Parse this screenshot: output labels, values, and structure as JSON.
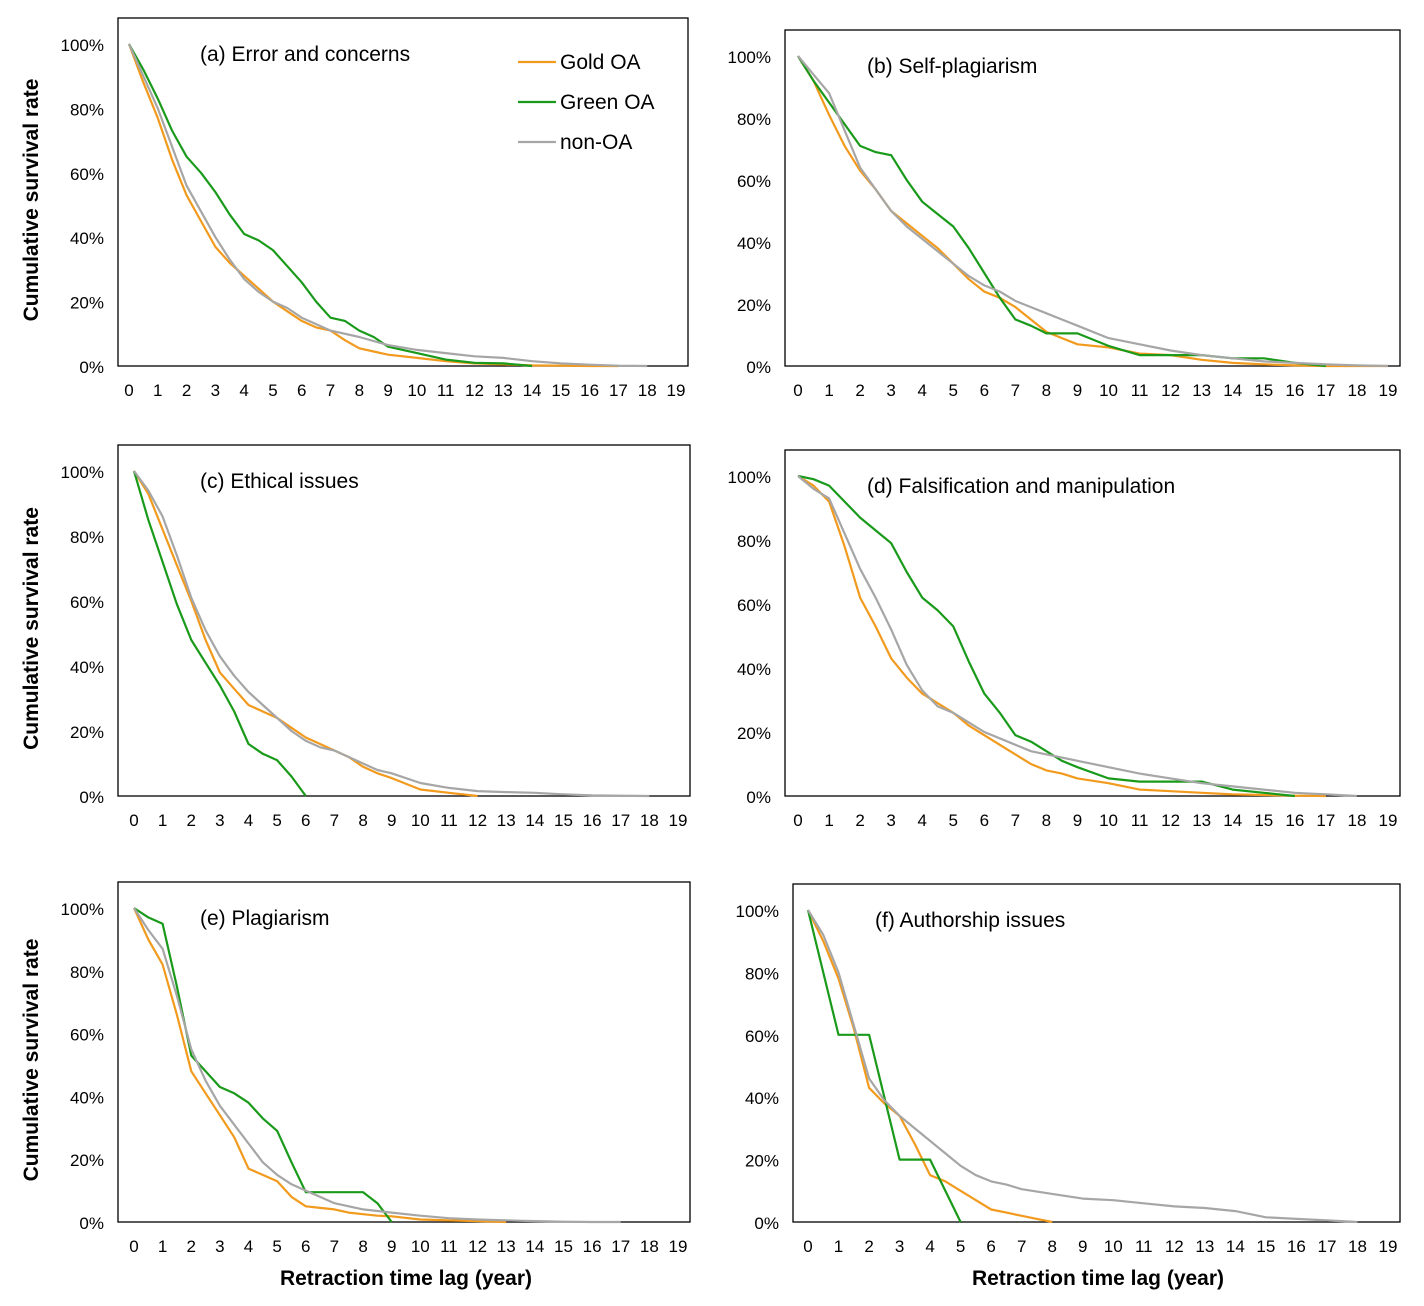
{
  "colors": {
    "gold": "#F29A1D",
    "green": "#1A9A1A",
    "nonoa": "#A6A6A6",
    "axis": "#000000"
  },
  "shared": {
    "ylabel": "Cumulative survival rate",
    "xlabel": "Retraction time lag (year)",
    "xticks": [
      "0",
      "1",
      "2",
      "3",
      "4",
      "5",
      "6",
      "7",
      "8",
      "9",
      "10",
      "11",
      "12",
      "13",
      "14",
      "15",
      "16",
      "17",
      "18",
      "19"
    ],
    "yticks": [
      "0%",
      "20%",
      "40%",
      "60%",
      "80%",
      "100%"
    ],
    "legend": [
      "Gold OA",
      "Green OA",
      "non-OA"
    ]
  },
  "chart_data": [
    {
      "type": "line",
      "title": "(a) Error and concerns",
      "xlim": [
        0,
        19
      ],
      "ylim": [
        0,
        100
      ],
      "series": [
        {
          "name": "Gold OA",
          "x": [
            0,
            0.5,
            1,
            1.5,
            2,
            2.5,
            3,
            3.5,
            4,
            4.5,
            5,
            5.5,
            6,
            6.5,
            7,
            7.5,
            8,
            8.5,
            9,
            10,
            11,
            12,
            13,
            14,
            15,
            16,
            17
          ],
          "values": [
            100,
            88,
            77,
            64,
            53,
            45,
            37,
            32,
            28,
            24,
            20,
            17,
            14,
            12,
            11,
            8,
            5.5,
            4.5,
            3.5,
            2.5,
            1.5,
            0.8,
            0.5,
            0.2,
            0.1,
            0,
            0
          ]
        },
        {
          "name": "Green OA",
          "x": [
            0,
            0.5,
            1,
            1.5,
            2,
            2.5,
            3,
            3.5,
            4,
            4.5,
            5,
            5.5,
            6,
            6.5,
            7,
            7.5,
            8,
            8.5,
            9,
            10,
            11,
            12,
            13,
            14
          ],
          "values": [
            100,
            92,
            83,
            73,
            65,
            60,
            54,
            47,
            41,
            39,
            36,
            31,
            26,
            20,
            15,
            14,
            11,
            9,
            6,
            4,
            2,
            1,
            0.8,
            0
          ]
        },
        {
          "name": "non-OA",
          "x": [
            0,
            0.5,
            1,
            1.5,
            2,
            2.5,
            3,
            3.5,
            4,
            4.5,
            5,
            5.5,
            6,
            6.5,
            7,
            8,
            9,
            10,
            11,
            12,
            13,
            14,
            15,
            16,
            17,
            18
          ],
          "values": [
            100,
            90,
            80,
            68,
            56,
            48,
            40,
            33,
            27,
            23,
            20,
            18,
            15,
            13,
            11,
            9,
            6.5,
            5,
            4,
            3,
            2.5,
            1.5,
            0.8,
            0.4,
            0.1,
            0
          ]
        }
      ]
    },
    {
      "type": "line",
      "title": "(b) Self-plagiarism",
      "xlim": [
        0,
        19
      ],
      "ylim": [
        0,
        100
      ],
      "series": [
        {
          "name": "Gold OA",
          "x": [
            0,
            0.5,
            1,
            1.5,
            2,
            2.5,
            3,
            3.5,
            4,
            4.5,
            5,
            5.5,
            6,
            6.5,
            7,
            7.5,
            8,
            8.5,
            9,
            10,
            11,
            12,
            13,
            14,
            15,
            16,
            17,
            18,
            19
          ],
          "values": [
            100,
            92,
            81,
            71,
            63,
            57,
            50,
            46,
            42,
            38,
            33,
            28,
            24,
            22,
            19,
            15,
            11,
            9,
            7,
            6,
            4,
            3.5,
            2,
            1,
            0.5,
            0.2,
            0,
            0,
            0
          ]
        },
        {
          "name": "Green OA",
          "x": [
            0,
            0.5,
            1,
            1.5,
            2,
            2.5,
            3,
            3.5,
            4,
            4.5,
            5,
            5.5,
            6,
            6.5,
            7,
            7.5,
            8,
            8.5,
            9,
            10,
            11,
            12,
            13,
            14,
            15,
            16,
            17
          ],
          "values": [
            100,
            92,
            85,
            78,
            71,
            69,
            68,
            60,
            53,
            49,
            45,
            38,
            30,
            22,
            15,
            13,
            10.5,
            10.5,
            10.5,
            6.5,
            3.5,
            3.5,
            3.5,
            2.5,
            2.5,
            1,
            0
          ]
        },
        {
          "name": "non-OA",
          "x": [
            0,
            0.5,
            1,
            1.5,
            2,
            2.5,
            3,
            3.5,
            4,
            4.5,
            5,
            5.5,
            6,
            6.5,
            7,
            7.5,
            8,
            8.5,
            9,
            10,
            11,
            12,
            13,
            14,
            15,
            16,
            17,
            18,
            19
          ],
          "values": [
            100,
            94,
            88,
            76,
            64,
            57,
            50,
            45,
            41,
            37,
            33,
            29,
            26,
            24,
            21,
            19,
            17,
            15,
            13,
            9,
            7,
            5,
            3.5,
            2.5,
            1.5,
            1,
            0.5,
            0.2,
            0
          ]
        }
      ]
    },
    {
      "type": "line",
      "title": "(c) Ethical issues",
      "xlim": [
        0,
        19
      ],
      "ylim": [
        0,
        100
      ],
      "series": [
        {
          "name": "Gold OA",
          "x": [
            0,
            0.5,
            1,
            1.5,
            2,
            2.5,
            3,
            3.5,
            4,
            4.5,
            5,
            5.5,
            6,
            6.5,
            7,
            7.5,
            8,
            8.5,
            9,
            10,
            11,
            12
          ],
          "values": [
            100,
            93,
            82,
            71,
            60,
            48,
            38,
            33,
            28,
            26,
            24,
            21,
            18,
            16,
            14,
            12,
            9,
            7,
            5.5,
            2,
            1,
            0
          ]
        },
        {
          "name": "Green OA",
          "x": [
            0,
            0.5,
            1,
            1.5,
            2,
            2.5,
            3,
            3.5,
            4,
            4.5,
            5,
            5.5,
            6
          ],
          "values": [
            100,
            85,
            72,
            59,
            48,
            41,
            34,
            26,
            16,
            13,
            11,
            6,
            0
          ]
        },
        {
          "name": "non-OA",
          "x": [
            0,
            0.5,
            1,
            1.5,
            2,
            2.5,
            3,
            3.5,
            4,
            4.5,
            5,
            5.5,
            6,
            6.5,
            7,
            7.5,
            8,
            8.5,
            9,
            10,
            11,
            12,
            13,
            14,
            15,
            16,
            17,
            18
          ],
          "values": [
            100,
            94,
            86,
            74,
            61,
            51,
            43,
            37,
            32,
            28,
            24,
            20,
            17,
            15,
            14,
            12,
            10,
            8,
            7,
            4,
            2.5,
            1.5,
            1.2,
            1,
            0.5,
            0.2,
            0.1,
            0
          ]
        }
      ]
    },
    {
      "type": "line",
      "title": "(d) Falsification and manipulation",
      "xlim": [
        0,
        19
      ],
      "ylim": [
        0,
        100
      ],
      "series": [
        {
          "name": "Gold OA",
          "x": [
            0,
            0.5,
            1,
            1.5,
            2,
            2.5,
            3,
            3.5,
            4,
            4.5,
            5,
            5.5,
            6,
            6.5,
            7,
            7.5,
            8,
            8.5,
            9,
            10,
            11,
            12,
            13,
            14,
            15,
            16,
            17
          ],
          "values": [
            100,
            97,
            92,
            78,
            62,
            53,
            43,
            37,
            32,
            29,
            26,
            22,
            19,
            16,
            13,
            10,
            8,
            7,
            5.5,
            4,
            2,
            1.5,
            1,
            0.5,
            0.3,
            0.1,
            0
          ]
        },
        {
          "name": "Green OA",
          "x": [
            0,
            0.5,
            1,
            1.5,
            2,
            2.5,
            3,
            3.5,
            4,
            4.5,
            5,
            5.5,
            6,
            6.5,
            7,
            7.5,
            8,
            8.5,
            9,
            10,
            11,
            12,
            13,
            14,
            15,
            16
          ],
          "values": [
            100,
            99,
            97,
            92,
            87,
            83,
            79,
            70,
            62,
            58,
            53,
            42,
            32,
            26,
            19,
            17,
            14,
            11,
            9,
            5.5,
            4.5,
            4.5,
            4.5,
            2,
            1,
            0
          ]
        },
        {
          "name": "non-OA",
          "x": [
            0,
            0.5,
            1,
            1.5,
            2,
            2.5,
            3,
            3.5,
            4,
            4.5,
            5,
            5.5,
            6,
            6.5,
            7,
            7.5,
            8,
            8.5,
            9,
            10,
            11,
            12,
            13,
            14,
            15,
            16,
            17,
            18
          ],
          "values": [
            100,
            96,
            93,
            82,
            71,
            62,
            52,
            41,
            33,
            28,
            26,
            23,
            20,
            18,
            16,
            14,
            13,
            12,
            11,
            9,
            7,
            5.5,
            4,
            3,
            2,
            1,
            0.5,
            0
          ]
        }
      ]
    },
    {
      "type": "line",
      "title": "(e) Plagiarism",
      "xlim": [
        0,
        19
      ],
      "ylim": [
        0,
        100
      ],
      "series": [
        {
          "name": "Gold OA",
          "x": [
            0,
            0.5,
            1,
            1.5,
            2,
            2.5,
            3,
            3.5,
            4,
            4.5,
            5,
            5.5,
            6,
            6.5,
            7,
            7.5,
            8,
            8.5,
            9,
            10,
            11,
            12,
            13
          ],
          "values": [
            100,
            90,
            82,
            66,
            48,
            41,
            34,
            27,
            17,
            15,
            13,
            8,
            5,
            4.5,
            4,
            3,
            2.5,
            2,
            1.8,
            0.8,
            0.5,
            0.3,
            0
          ]
        },
        {
          "name": "Green OA",
          "x": [
            0,
            0.5,
            1,
            1.5,
            2,
            2.5,
            3,
            3.5,
            4,
            4.5,
            5,
            5.5,
            6,
            6.5,
            7,
            7.5,
            8,
            8.5,
            9
          ],
          "values": [
            100,
            97,
            95,
            75,
            53,
            48,
            43,
            41,
            38,
            33,
            29,
            19,
            9.5,
            9.5,
            9.5,
            9.5,
            9.5,
            6,
            0
          ]
        },
        {
          "name": "non-OA",
          "x": [
            0,
            0.5,
            1,
            1.5,
            2,
            2.5,
            3,
            3.5,
            4,
            4.5,
            5,
            5.5,
            6,
            6.5,
            7,
            7.5,
            8,
            8.5,
            9,
            10,
            11,
            12,
            13,
            14,
            15,
            16,
            17
          ],
          "values": [
            100,
            93,
            87,
            72,
            55,
            45,
            37,
            31,
            25,
            19,
            15,
            12,
            10,
            8,
            6,
            5,
            4,
            3.5,
            3,
            2,
            1.2,
            0.8,
            0.5,
            0.3,
            0.1,
            0,
            0
          ]
        }
      ]
    },
    {
      "type": "line",
      "title": "(f) Authorship issues",
      "xlim": [
        0,
        19
      ],
      "ylim": [
        0,
        100
      ],
      "series": [
        {
          "name": "Gold OA",
          "x": [
            0,
            0.5,
            1,
            1.5,
            2,
            2.5,
            3,
            3.5,
            4,
            4.5,
            5,
            5.5,
            6,
            6.5,
            7,
            7.5,
            8
          ],
          "values": [
            100,
            90,
            78,
            62,
            43,
            38,
            34,
            25,
            15,
            13,
            10,
            7,
            4,
            3,
            2,
            1,
            0
          ]
        },
        {
          "name": "Green OA",
          "x": [
            0,
            1,
            2,
            3,
            4,
            5
          ],
          "values": [
            100,
            60,
            60,
            20,
            20,
            0
          ]
        },
        {
          "name": "non-OA",
          "x": [
            0,
            0.5,
            1,
            1.5,
            2,
            2.5,
            3,
            3.5,
            4,
            4.5,
            5,
            5.5,
            6,
            6.5,
            7,
            8,
            9,
            10,
            11,
            12,
            13,
            14,
            15,
            16,
            17,
            18
          ],
          "values": [
            100,
            92,
            80,
            63,
            46,
            39,
            34,
            30,
            26,
            22,
            18,
            15,
            13,
            12,
            10.5,
            9,
            7.5,
            7,
            6,
            5,
            4.5,
            3.5,
            1.5,
            1,
            0.5,
            0
          ]
        }
      ]
    }
  ]
}
